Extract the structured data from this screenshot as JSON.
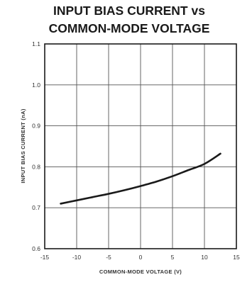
{
  "chart_data": {
    "type": "line",
    "title": "INPUT BIAS CURRENT vs",
    "subtitle": "COMMON-MODE VOLTAGE",
    "xlabel": "COMMON-MODE VOLTAGE (V)",
    "ylabel": "INPUT BIAS CURRENT (nA)",
    "xlim": [
      -15,
      15
    ],
    "ylim": [
      0.6,
      1.1
    ],
    "xticks": [
      -15,
      -10,
      -5,
      0,
      5,
      10,
      15
    ],
    "xtick_labels": [
      "-15",
      "-10",
      "-5",
      "0",
      "5",
      "10",
      "15"
    ],
    "yticks": [
      0.6,
      0.7,
      0.8,
      0.9,
      1.0,
      1.1
    ],
    "ytick_labels": [
      "0.6",
      "0.7",
      "0.8",
      "0.9",
      "1.0",
      "1.1"
    ],
    "grid": true,
    "series": [
      {
        "x": [
          -12.5,
          -10,
          -7.5,
          -5,
          -2.5,
          0,
          2.5,
          5,
          7.5,
          10,
          12.5
        ],
        "y": [
          0.71,
          0.718,
          0.726,
          0.734,
          0.743,
          0.753,
          0.764,
          0.777,
          0.792,
          0.807,
          0.832
        ]
      }
    ]
  },
  "colors": {
    "line": "#1a1a1a",
    "grid": "#555555",
    "frame": "#1a1a1a"
  }
}
